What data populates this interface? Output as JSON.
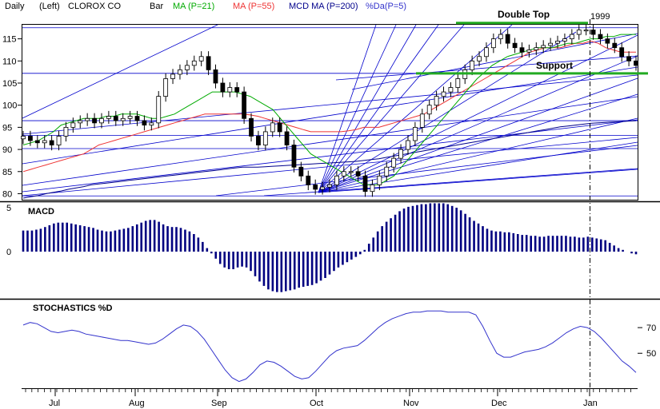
{
  "header": {
    "period": "Daily",
    "scale": "(Left)",
    "company": "CLOROX CO",
    "bar_label": "Bar",
    "ma21": "MA (P=21)",
    "ma55": "MA (P=55)",
    "ma200": "MCD MA (P=200)",
    "da": "%Da(P=5)",
    "year": "1999"
  },
  "colors": {
    "ma21": "#00aa00",
    "ma55": "#ee3333",
    "ma200": "#00008b",
    "da": "#3333cc",
    "annotation": "#22aa22",
    "trend": "#0000cc",
    "macd": "#000080",
    "stoch": "#3333cc"
  },
  "chart_data": [
    {
      "type": "candlestick",
      "panel": "price",
      "ylim": [
        79,
        118
      ],
      "y_ticks": [
        80,
        85,
        90,
        95,
        100,
        105,
        110,
        115
      ],
      "x_labels": [
        "Jul",
        "Aug",
        "Sep",
        "Oct",
        "Nov",
        "Dec",
        "Jan"
      ],
      "annotations": [
        "Double Top",
        "Support"
      ],
      "double_top_level": 117.5,
      "support_level": 107.2,
      "horizontal_lines": [
        117.5,
        96.5,
        93.2,
        90.2,
        79.5
      ],
      "ma21": [
        91,
        91.5,
        92,
        93,
        94,
        95.5,
        96,
        96.5,
        97,
        97,
        97,
        97.5,
        97.5,
        98,
        98,
        98,
        97.5,
        97,
        97,
        97.5,
        98,
        99,
        100,
        101,
        102,
        103,
        103,
        103,
        103,
        102.5,
        102,
        101,
        100,
        99,
        97,
        95,
        93,
        91,
        89,
        88,
        87,
        86,
        85,
        84,
        83,
        82,
        82,
        82,
        83,
        84,
        86,
        88,
        90,
        92,
        94,
        96,
        98,
        100,
        102,
        104,
        106,
        107.5,
        109,
        110,
        111,
        111.5,
        112,
        112.5,
        113,
        113,
        113,
        113.5,
        114,
        114,
        114.5,
        115,
        115,
        115.5,
        115.5,
        116,
        116,
        116
      ],
      "ma55": [
        85,
        85.5,
        86,
        86.5,
        87,
        87.5,
        88,
        88.5,
        89,
        90,
        91,
        91.5,
        92,
        92.5,
        93,
        93.5,
        94,
        94.5,
        95,
        95.5,
        96,
        96.5,
        97,
        97.5,
        98,
        98,
        98,
        98,
        98,
        98,
        97.8,
        97.5,
        97,
        96.5,
        96,
        95.5,
        95,
        94.5,
        94,
        94,
        94,
        94,
        94,
        94.2,
        94.5,
        95,
        95,
        95,
        95.5,
        96,
        96.5,
        97,
        97.5,
        98,
        99,
        100,
        101,
        102,
        103,
        104,
        105,
        106,
        107,
        108,
        109,
        110,
        111,
        112,
        112.5,
        113,
        113,
        113,
        113.5,
        114,
        114,
        114.5,
        114,
        113,
        112.5,
        112,
        112,
        112
      ],
      "ma200": [
        79,
        79.3,
        79.6,
        80,
        80.3,
        80.6,
        81,
        81.3,
        81.6,
        82,
        82.2,
        82.4,
        82.6,
        82.8,
        83,
        83.2,
        83.4,
        83.6,
        83.8,
        84,
        84.2,
        84.4,
        84.6,
        84.8,
        85,
        85.2,
        85.4,
        85.6,
        85.8,
        86,
        86,
        86,
        86.1,
        86.2,
        86.3,
        86.4,
        86.5,
        86.6,
        86.7,
        86.8,
        86.9,
        87,
        87.1,
        87.2,
        87.3,
        87.5,
        87.7,
        87.9,
        88.2,
        88.5,
        88.8,
        89.1,
        89.4,
        89.7,
        90,
        90.3,
        90.6,
        90.9,
        91.2,
        91.5,
        91.8,
        92.1,
        92.4,
        92.7,
        93,
        93.3,
        93.6,
        93.9,
        94.2,
        94.5,
        94.8,
        95.1,
        95.3,
        95.5,
        95.7,
        95.9,
        96,
        96.1,
        96.2,
        96.3,
        96.4,
        96.5
      ],
      "close": [
        93,
        92,
        91.5,
        92,
        91,
        93,
        95,
        96,
        96.5,
        97,
        96,
        97,
        97.5,
        96.5,
        97,
        97.5,
        96.5,
        95.5,
        96,
        102,
        106,
        107,
        108,
        109,
        110,
        111,
        108,
        105,
        103,
        104,
        103,
        97,
        93,
        91,
        94,
        96,
        94,
        91,
        86,
        84,
        82,
        81,
        81.5,
        82,
        84,
        85,
        85,
        84,
        80.5,
        82,
        84,
        86,
        88,
        90,
        92,
        95,
        98,
        100,
        102,
        103,
        104,
        106,
        108,
        110,
        111,
        113,
        115,
        116,
        114,
        113,
        112,
        112.5,
        113,
        113.5,
        114,
        114.5,
        115,
        116,
        117,
        117,
        116,
        115,
        114,
        113,
        111,
        110,
        109
      ]
    },
    {
      "type": "bar",
      "panel": "macd",
      "title": "MACD",
      "y_ticks": [
        5,
        0
      ],
      "ylim": [
        -5,
        6
      ],
      "values": [
        2.4,
        2.4,
        2.4,
        2.5,
        2.6,
        2.8,
        3.0,
        3.2,
        3.3,
        3.3,
        3.3,
        3.2,
        3.1,
        3.0,
        2.9,
        2.8,
        2.7,
        2.5,
        2.4,
        2.3,
        2.3,
        2.4,
        2.5,
        2.6,
        2.7,
        2.9,
        3.1,
        3.3,
        3.5,
        3.6,
        3.6,
        3.4,
        3.1,
        2.9,
        2.8,
        2.8,
        2.7,
        2.5,
        2.3,
        2.0,
        1.6,
        1.1,
        0.4,
        -0.2,
        -0.8,
        -1.4,
        -1.8,
        -2.0,
        -2.0,
        -1.8,
        -1.7,
        -1.8,
        -2.2,
        -2.8,
        -3.4,
        -3.9,
        -4.3,
        -4.5,
        -4.6,
        -4.6,
        -4.5,
        -4.4,
        -4.3,
        -4.1,
        -4.0,
        -3.9,
        -3.8,
        -3.6,
        -3.3,
        -3.0,
        -2.6,
        -2.2,
        -1.8,
        -1.5,
        -1.2,
        -0.9,
        -0.6,
        -0.3,
        0.2,
        0.9,
        1.6,
        2.3,
        2.9,
        3.4,
        3.8,
        4.2,
        4.6,
        4.9,
        5.1,
        5.2,
        5.3,
        5.4,
        5.4,
        5.5,
        5.5,
        5.5,
        5.5,
        5.4,
        5.2,
        5.0,
        4.7,
        4.3,
        3.9,
        3.5,
        3.2,
        2.9,
        2.6,
        2.4,
        2.3,
        2.3,
        2.2,
        2.2,
        2.1,
        2.0,
        1.9,
        1.9,
        1.8,
        1.8,
        1.7,
        1.7,
        1.8,
        1.8,
        1.8,
        1.8,
        1.8,
        1.7,
        1.7,
        1.6,
        1.6,
        1.7,
        1.6,
        1.5,
        1.4,
        1.3,
        1.0,
        0.7,
        0.4,
        0.2,
        0.0,
        -0.2,
        -0.3
      ]
    },
    {
      "type": "line",
      "panel": "stochastics",
      "title": "STOCHASTICS %D",
      "y_ticks": [
        70,
        50
      ],
      "ylim": [
        24,
        90
      ],
      "values": [
        72,
        74,
        73,
        70,
        67,
        66,
        67,
        68,
        67,
        65,
        64,
        63,
        62,
        61,
        60,
        60,
        59,
        58,
        57,
        58,
        61,
        65,
        69,
        72,
        71,
        67,
        61,
        53,
        45,
        37,
        31,
        28,
        30,
        35,
        41,
        44,
        43,
        40,
        36,
        32,
        30,
        31,
        36,
        42,
        48,
        52,
        54,
        55,
        56,
        60,
        65,
        70,
        74,
        77,
        79,
        81,
        82,
        82,
        83,
        83,
        83,
        82,
        82,
        82,
        82,
        80,
        71,
        60,
        50,
        47,
        47,
        49,
        51,
        52,
        53,
        55,
        58,
        62,
        66,
        69,
        71,
        70,
        67,
        62,
        56,
        50,
        44,
        40,
        35
      ]
    }
  ]
}
